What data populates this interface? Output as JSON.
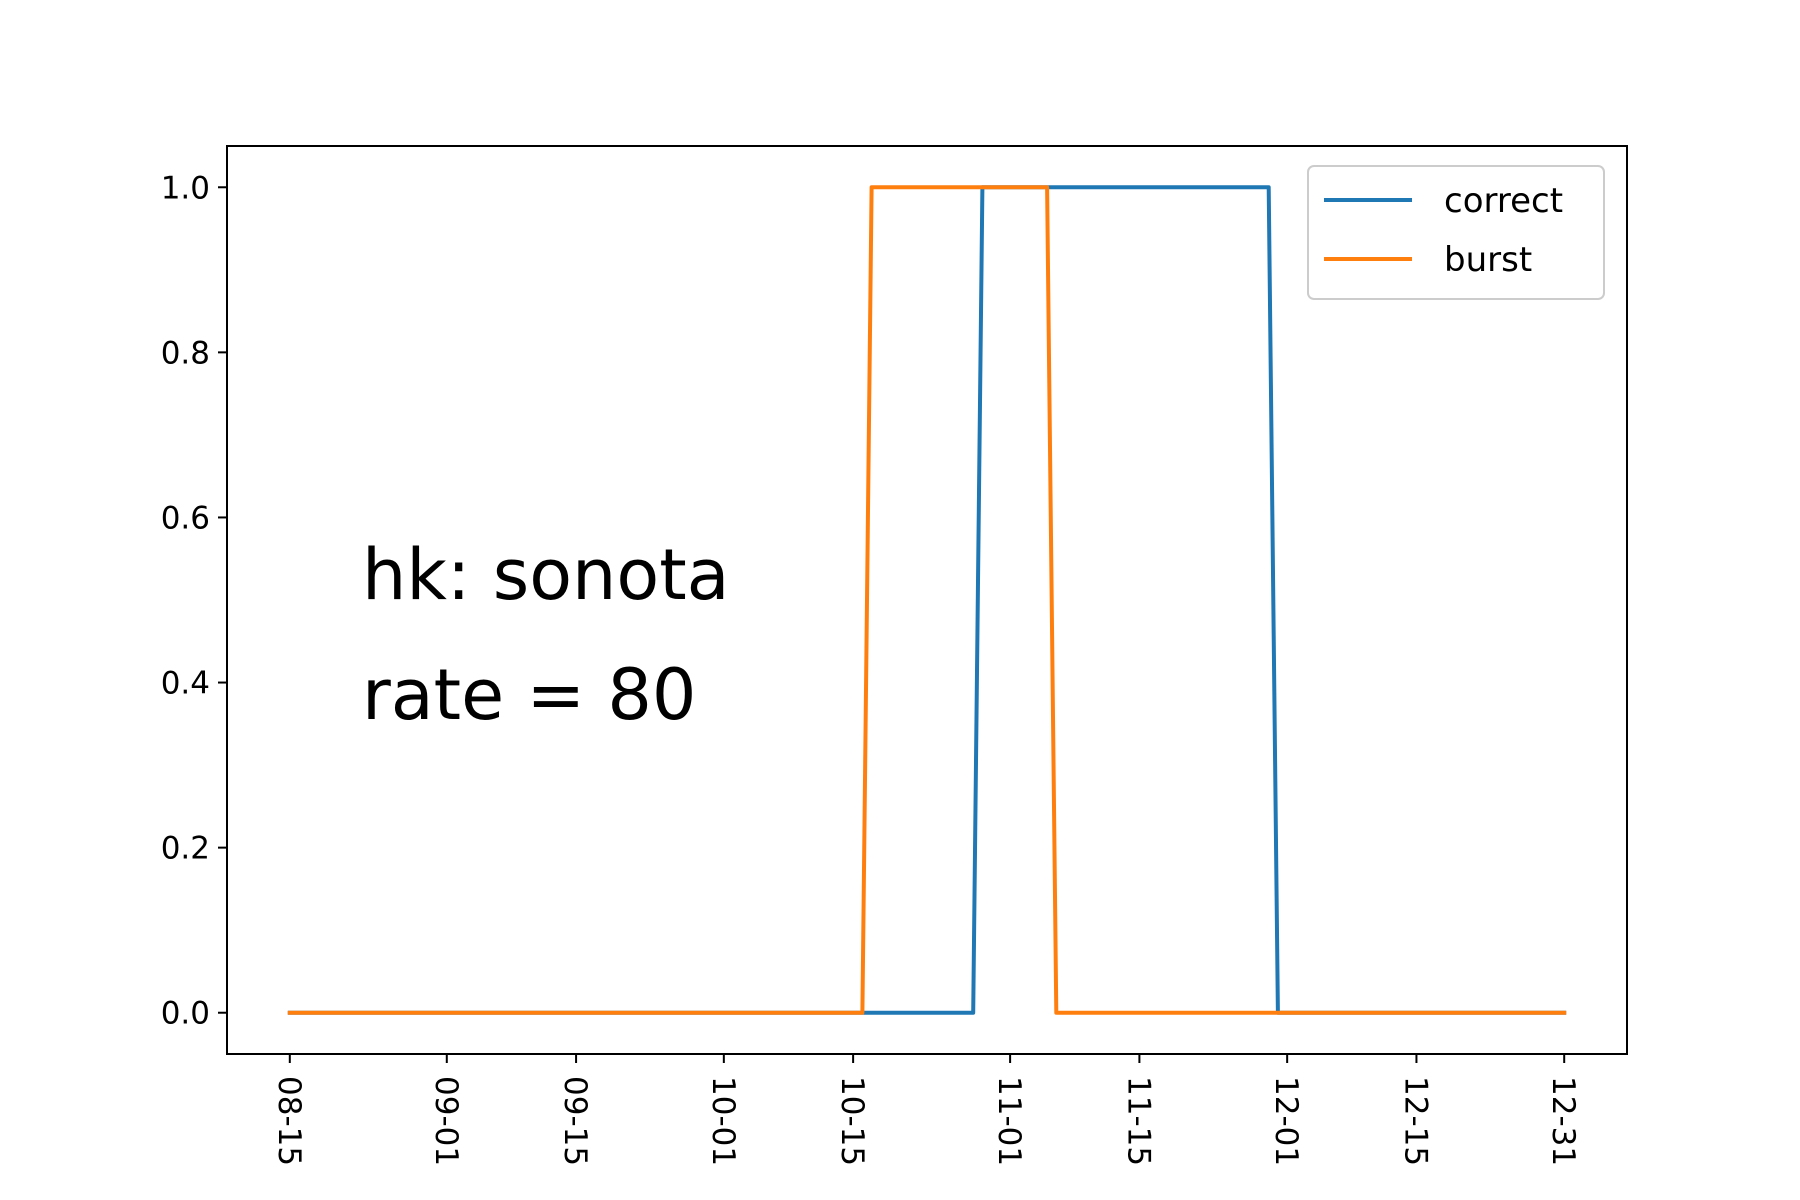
{
  "chart_data": {
    "type": "line",
    "title": "",
    "xlabel": "",
    "ylabel": "",
    "x_ticks": [
      {
        "label": "08-15",
        "day": 0
      },
      {
        "label": "09-01",
        "day": 17
      },
      {
        "label": "09-15",
        "day": 31
      },
      {
        "label": "10-01",
        "day": 47
      },
      {
        "label": "10-15",
        "day": 61
      },
      {
        "label": "11-01",
        "day": 78
      },
      {
        "label": "11-15",
        "day": 92
      },
      {
        "label": "12-01",
        "day": 108
      },
      {
        "label": "12-15",
        "day": 122
      },
      {
        "label": "12-31",
        "day": 138
      }
    ],
    "xlim": [
      -6.8,
      144.8
    ],
    "ylim": [
      -0.05,
      1.05
    ],
    "y_ticks": [
      {
        "label": "0.0",
        "value": 0.0
      },
      {
        "label": "0.2",
        "value": 0.2
      },
      {
        "label": "0.4",
        "value": 0.4
      },
      {
        "label": "0.6",
        "value": 0.6
      },
      {
        "label": "0.8",
        "value": 0.8
      },
      {
        "label": "1.0",
        "value": 1.0
      }
    ],
    "series": [
      {
        "name": "correct",
        "color": "#1f77b4",
        "points": [
          [
            0,
            0
          ],
          [
            74,
            0
          ],
          [
            75,
            1
          ],
          [
            106,
            1
          ],
          [
            107,
            0
          ],
          [
            138,
            0
          ]
        ]
      },
      {
        "name": "burst",
        "color": "#ff7f0e",
        "points": [
          [
            0,
            0
          ],
          [
            62,
            0
          ],
          [
            63,
            1
          ],
          [
            82,
            1
          ],
          [
            83,
            0
          ],
          [
            138,
            0
          ]
        ]
      }
    ],
    "legend": {
      "placement": "top-right",
      "entries": [
        "correct",
        "burst"
      ]
    },
    "annotations": [
      "hk: sonota",
      "rate = 80"
    ]
  }
}
